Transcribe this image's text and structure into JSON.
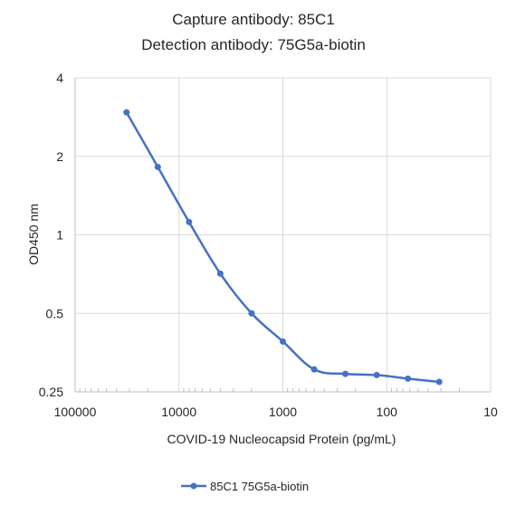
{
  "chart_data": {
    "type": "line",
    "title": [
      "Capture antibody: 85C1",
      "Detection antibody: 75G5a-biotin"
    ],
    "xlabel": "COVID-19 Nucleocapsid Protein (pg/mL)",
    "ylabel": "OD450 nm",
    "x_scale": "log",
    "x_reversed": true,
    "y_scale": "log2",
    "xlim": [
      100000,
      10
    ],
    "ylim": [
      0.25,
      4
    ],
    "x_ticks": [
      100000,
      10000,
      1000,
      100,
      10
    ],
    "x_tick_labels": [
      "100000",
      "10000",
      "1000",
      "100",
      "10"
    ],
    "y_ticks": [
      4,
      2,
      1,
      0.5,
      0.25
    ],
    "y_tick_labels": [
      "4",
      "2",
      "1",
      "0.5",
      "0.25"
    ],
    "grid": true,
    "legend_position": "bottom",
    "series": [
      {
        "name": "85C1 75G5a-biotin",
        "color": "#4472C4",
        "x": [
          32000,
          16000,
          8000,
          4000,
          2000,
          1000,
          500,
          250,
          125,
          62.5,
          31.25
        ],
        "y": [
          2.95,
          1.82,
          1.12,
          0.71,
          0.5,
          0.39,
          0.305,
          0.293,
          0.29,
          0.281,
          0.273
        ]
      }
    ]
  }
}
